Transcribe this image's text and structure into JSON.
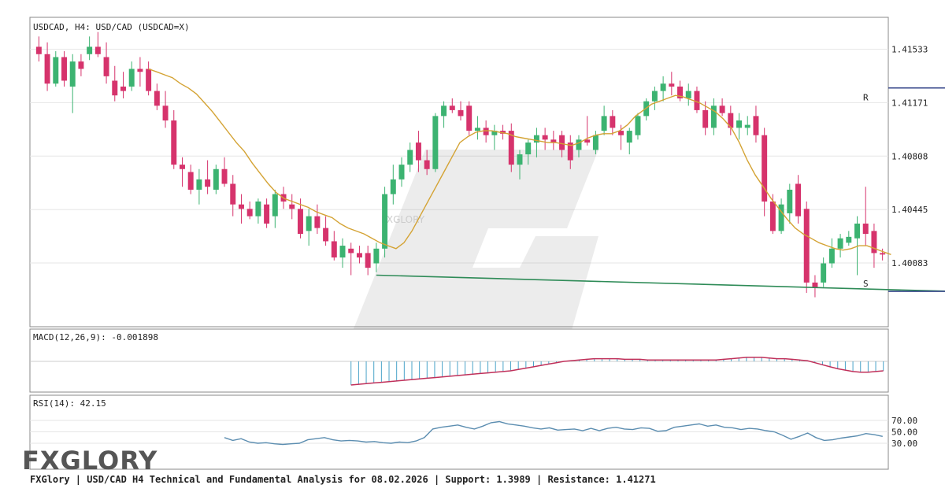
{
  "chart_data": {
    "type": "candlestick",
    "title": "USDCAD, H4: USD/CAD (USDCAD=X)",
    "watermark": "FXGLORY",
    "ylim": [
      1.3965,
      1.4175
    ],
    "y_ticks": [
      "1.41533",
      "1.41171",
      "1.40808",
      "1.40445",
      "1.40083"
    ],
    "colors": {
      "up": "#3cb371",
      "down": "#d6336c",
      "ma": "#d4a334",
      "trend": "#2e8b57",
      "level": "#3a4a8c",
      "macd_hist": "#4aa3c8",
      "macd_signal": "#c0305a",
      "rsi": "#5b8db0"
    },
    "candles": [
      [
        1.4155,
        1.4162,
        1.4145,
        1.415
      ],
      [
        1.415,
        1.4158,
        1.4125,
        1.413
      ],
      [
        1.413,
        1.4152,
        1.4128,
        1.4148
      ],
      [
        1.4148,
        1.4152,
        1.4128,
        1.4132
      ],
      [
        1.4128,
        1.415,
        1.411,
        1.4145
      ],
      [
        1.4145,
        1.415,
        1.4135,
        1.414
      ],
      [
        1.415,
        1.4162,
        1.4146,
        1.4155
      ],
      [
        1.4155,
        1.4165,
        1.4148,
        1.415
      ],
      [
        1.4148,
        1.4158,
        1.413,
        1.4135
      ],
      [
        1.4132,
        1.4142,
        1.4118,
        1.4122
      ],
      [
        1.4128,
        1.4138,
        1.412,
        1.4125
      ],
      [
        1.4128,
        1.4145,
        1.4125,
        1.414
      ],
      [
        1.414,
        1.4148,
        1.4128,
        1.4138
      ],
      [
        1.414,
        1.4145,
        1.4122,
        1.4125
      ],
      [
        1.4125,
        1.413,
        1.4112,
        1.4115
      ],
      [
        1.4115,
        1.4125,
        1.41,
        1.4105
      ],
      [
        1.4105,
        1.4112,
        1.4072,
        1.4075
      ],
      [
        1.4075,
        1.408,
        1.406,
        1.4072
      ],
      [
        1.407,
        1.4075,
        1.4055,
        1.4058
      ],
      [
        1.4058,
        1.4072,
        1.4048,
        1.4065
      ],
      [
        1.4065,
        1.4078,
        1.4055,
        1.406
      ],
      [
        1.4058,
        1.4075,
        1.4055,
        1.4072
      ],
      [
        1.4072,
        1.408,
        1.406,
        1.4062
      ],
      [
        1.4062,
        1.4068,
        1.404,
        1.4048
      ],
      [
        1.4048,
        1.4055,
        1.4035,
        1.4045
      ],
      [
        1.4045,
        1.405,
        1.4038,
        1.404
      ],
      [
        1.404,
        1.4052,
        1.4035,
        1.405
      ],
      [
        1.4048,
        1.4052,
        1.4032,
        1.4035
      ],
      [
        1.404,
        1.4058,
        1.4032,
        1.4055
      ],
      [
        1.4055,
        1.406,
        1.4045,
        1.405
      ],
      [
        1.4048,
        1.4055,
        1.4038,
        1.4045
      ],
      [
        1.4045,
        1.4052,
        1.4025,
        1.4028
      ],
      [
        1.403,
        1.4045,
        1.402,
        1.404
      ],
      [
        1.404,
        1.4048,
        1.4028,
        1.4032
      ],
      [
        1.4032,
        1.404,
        1.402,
        1.4023
      ],
      [
        1.4023,
        1.403,
        1.401,
        1.4012
      ],
      [
        1.4012,
        1.4025,
        1.4005,
        1.402
      ],
      [
        1.4018,
        1.4022,
        1.4,
        1.4015
      ],
      [
        1.4015,
        1.402,
        1.4008,
        1.4012
      ],
      [
        1.4015,
        1.402,
        1.4,
        1.4005
      ],
      [
        1.4008,
        1.4022,
        1.4002,
        1.4018
      ],
      [
        1.4018,
        1.406,
        1.4012,
        1.4055
      ],
      [
        1.4055,
        1.4075,
        1.4048,
        1.4065
      ],
      [
        1.4065,
        1.408,
        1.406,
        1.4075
      ],
      [
        1.4075,
        1.409,
        1.407,
        1.4085
      ],
      [
        1.409,
        1.4098,
        1.407,
        1.4078
      ],
      [
        1.4078,
        1.4085,
        1.4068,
        1.4072
      ],
      [
        1.4072,
        1.411,
        1.407,
        1.4108
      ],
      [
        1.4108,
        1.4118,
        1.41,
        1.4115
      ],
      [
        1.4115,
        1.412,
        1.411,
        1.4112
      ],
      [
        1.4112,
        1.4118,
        1.4105,
        1.4108
      ],
      [
        1.4115,
        1.4118,
        1.4095,
        1.4098
      ],
      [
        1.4098,
        1.4108,
        1.4092,
        1.41
      ],
      [
        1.41,
        1.4105,
        1.409,
        1.4095
      ],
      [
        1.4095,
        1.4102,
        1.4085,
        1.4098
      ],
      [
        1.4098,
        1.4102,
        1.4092,
        1.4096
      ],
      [
        1.4098,
        1.4103,
        1.407,
        1.4075
      ],
      [
        1.4075,
        1.4085,
        1.4065,
        1.4082
      ],
      [
        1.4082,
        1.4092,
        1.4075,
        1.409
      ],
      [
        1.409,
        1.41,
        1.408,
        1.4095
      ],
      [
        1.4095,
        1.41,
        1.4085,
        1.4092
      ],
      [
        1.4092,
        1.4098,
        1.4085,
        1.409
      ],
      [
        1.4095,
        1.4098,
        1.408,
        1.4085
      ],
      [
        1.409,
        1.4095,
        1.4072,
        1.4078
      ],
      [
        1.4085,
        1.4095,
        1.408,
        1.4092
      ],
      [
        1.4092,
        1.4108,
        1.4088,
        1.409
      ],
      [
        1.4085,
        1.4098,
        1.4082,
        1.4095
      ],
      [
        1.4098,
        1.4115,
        1.4095,
        1.4108
      ],
      [
        1.4108,
        1.4112,
        1.4095,
        1.41
      ],
      [
        1.4098,
        1.4102,
        1.4085,
        1.4095
      ],
      [
        1.409,
        1.41,
        1.4082,
        1.4098
      ],
      [
        1.4095,
        1.411,
        1.4092,
        1.4108
      ],
      [
        1.4108,
        1.412,
        1.4105,
        1.4118
      ],
      [
        1.4118,
        1.4128,
        1.4112,
        1.4125
      ],
      [
        1.4125,
        1.4135,
        1.4118,
        1.413
      ],
      [
        1.413,
        1.4138,
        1.4122,
        1.4128
      ],
      [
        1.4128,
        1.4132,
        1.4118,
        1.412
      ],
      [
        1.412,
        1.413,
        1.4115,
        1.4125
      ],
      [
        1.4125,
        1.4128,
        1.411,
        1.4112
      ],
      [
        1.4112,
        1.4118,
        1.4095,
        1.41
      ],
      [
        1.41,
        1.412,
        1.4095,
        1.4115
      ],
      [
        1.4115,
        1.412,
        1.4108,
        1.411
      ],
      [
        1.411,
        1.4115,
        1.4095,
        1.41
      ],
      [
        1.41,
        1.411,
        1.4092,
        1.4105
      ],
      [
        1.41,
        1.4108,
        1.4095,
        1.4102
      ],
      [
        1.4108,
        1.4115,
        1.409,
        1.4095
      ],
      [
        1.4095,
        1.41,
        1.404,
        1.405
      ],
      [
        1.405,
        1.4055,
        1.4028,
        1.403
      ],
      [
        1.403,
        1.4052,
        1.4028,
        1.4048
      ],
      [
        1.4042,
        1.4062,
        1.4035,
        1.4058
      ],
      [
        1.4062,
        1.4068,
        1.4035,
        1.404
      ],
      [
        1.4045,
        1.405,
        1.3988,
        1.3995
      ],
      [
        1.3995,
        1.4,
        1.3985,
        1.3992
      ],
      [
        1.3995,
        1.4012,
        1.3992,
        1.4008
      ],
      [
        1.4008,
        1.4025,
        1.4005,
        1.4018
      ],
      [
        1.4018,
        1.4028,
        1.4012,
        1.4025
      ],
      [
        1.4022,
        1.403,
        1.402,
        1.4026
      ],
      [
        1.4025,
        1.404,
        1.4,
        1.4035
      ],
      [
        1.4035,
        1.406,
        1.402,
        1.4028
      ],
      [
        1.403,
        1.4035,
        1.4005,
        1.4015
      ],
      [
        1.4015,
        1.4018,
        1.401,
        1.4014
      ]
    ],
    "ma": [
      1.414,
      1.4138,
      1.4136,
      1.4134,
      1.413,
      1.4127,
      1.4123,
      1.4117,
      1.4111,
      1.4104,
      1.4097,
      1.409,
      1.4084,
      1.4076,
      1.4069,
      1.4062,
      1.4056,
      1.4052,
      1.405,
      1.4048,
      1.4046,
      1.4043,
      1.4041,
      1.4039,
      1.4035,
      1.4032,
      1.403,
      1.4028,
      1.4025,
      1.4022,
      1.402,
      1.4018,
      1.4022,
      1.403,
      1.404,
      1.405,
      1.406,
      1.407,
      1.408,
      1.409,
      1.4094,
      1.4097,
      1.4098,
      1.4098,
      1.4097,
      1.4096,
      1.4094,
      1.4093,
      1.4092,
      1.4091,
      1.409,
      1.409,
      1.4089,
      1.4088,
      1.409,
      1.4093,
      1.4095,
      1.4096,
      1.4096,
      1.4098,
      1.4102,
      1.4108,
      1.4112,
      1.4116,
      1.4118,
      1.412,
      1.4122,
      1.4121,
      1.4119,
      1.4117,
      1.4114,
      1.4111,
      1.4106,
      1.41,
      1.409,
      1.4078,
      1.4068,
      1.406,
      1.4052,
      1.4045,
      1.4038,
      1.4032,
      1.4028,
      1.4025,
      1.4022,
      1.402,
      1.4018,
      1.4017,
      1.4018,
      1.402,
      1.402,
      1.4018,
      1.4016,
      1.4014
    ],
    "ma_start": 13,
    "trendline": {
      "p1": {
        "index": 40,
        "value": 1.4
      },
      "p2": {
        "index": 133,
        "value": 1.3985
      }
    },
    "resistance": {
      "value": 1.41271,
      "label": "R",
      "from_index": 128
    },
    "support": {
      "value": 1.3989,
      "label": "S",
      "from_index": 128
    },
    "macd": {
      "label": "MACD(12,26,9): -0.001898",
      "hist_start": 37,
      "hist": [
        -0.0035,
        -0.0034,
        -0.0033,
        -0.0032,
        -0.0031,
        -0.003,
        -0.0029,
        -0.0028,
        -0.0027,
        -0.0026,
        -0.0025,
        -0.0024,
        -0.0023,
        -0.0022,
        -0.0021,
        -0.002,
        -0.0019,
        -0.0018,
        -0.0017,
        -0.0016,
        -0.0015,
        -0.0014,
        -0.0012,
        -0.001,
        -0.0008,
        -0.0006,
        -0.0004,
        -0.0002,
        0.0,
        0.0001,
        0.0002,
        0.0003,
        0.0004,
        0.0004,
        0.0004,
        0.0004,
        0.0003,
        0.0003,
        0.0003,
        0.0002,
        0.0002,
        0.0002,
        0.0002,
        0.0002,
        0.0002,
        0.0002,
        0.0002,
        0.0002,
        0.0002,
        0.0003,
        0.0004,
        0.0005,
        0.0006,
        0.0006,
        0.0006,
        0.0005,
        0.0004,
        0.0004,
        0.0003,
        0.0002,
        0.0001,
        -0.0002,
        -0.0005,
        -0.0008,
        -0.0011,
        -0.0013,
        -0.0015,
        -0.0016,
        -0.0016,
        -0.0015,
        -0.0014
      ],
      "signal": [
        -0.0035,
        -0.0034,
        -0.0033,
        -0.0032,
        -0.0031,
        -0.003,
        -0.0029,
        -0.0028,
        -0.0027,
        -0.0026,
        -0.0025,
        -0.0024,
        -0.0023,
        -0.0022,
        -0.0021,
        -0.002,
        -0.0019,
        -0.0018,
        -0.0017,
        -0.0016,
        -0.0015,
        -0.0014,
        -0.0012,
        -0.001,
        -0.0008,
        -0.0006,
        -0.0004,
        -0.0002,
        0.0,
        0.0001,
        0.0002,
        0.0003,
        0.0004,
        0.0004,
        0.0004,
        0.0004,
        0.0003,
        0.0003,
        0.0003,
        0.0002,
        0.0002,
        0.0002,
        0.0002,
        0.0002,
        0.0002,
        0.0002,
        0.0002,
        0.0002,
        0.0002,
        0.0003,
        0.0004,
        0.0005,
        0.0006,
        0.0006,
        0.0006,
        0.0005,
        0.0004,
        0.0004,
        0.0003,
        0.0002,
        0.0001,
        -0.0002,
        -0.0005,
        -0.0008,
        -0.0011,
        -0.0013,
        -0.0015,
        -0.0016,
        -0.0016,
        -0.0015,
        -0.0014
      ]
    },
    "rsi": {
      "label": "RSI(14): 42.15",
      "levels": [
        "70.00",
        "50.00",
        "30.00"
      ],
      "start_index": 22,
      "values": [
        40,
        35,
        38,
        32,
        30,
        31,
        29,
        28,
        29,
        30,
        36,
        38,
        40,
        36,
        34,
        35,
        34,
        32,
        33,
        31,
        30,
        32,
        31,
        34,
        40,
        55,
        58,
        60,
        62,
        58,
        55,
        60,
        66,
        68,
        64,
        62,
        60,
        57,
        55,
        57,
        53,
        54,
        55,
        52,
        56,
        52,
        56,
        58,
        55,
        54,
        57,
        56,
        51,
        52,
        58,
        60,
        62,
        64,
        60,
        62,
        58,
        57,
        54,
        56,
        55,
        52,
        50,
        44,
        37,
        42,
        48,
        40,
        35,
        36,
        39,
        41,
        43,
        47,
        45,
        42
      ]
    }
  },
  "footer": "FXGlory | USD/CAD H4 Technical and Fundamental Analysis for 08.02.2026 | Support: 1.3989 | Resistance: 1.41271",
  "logo": "FXGLORY"
}
